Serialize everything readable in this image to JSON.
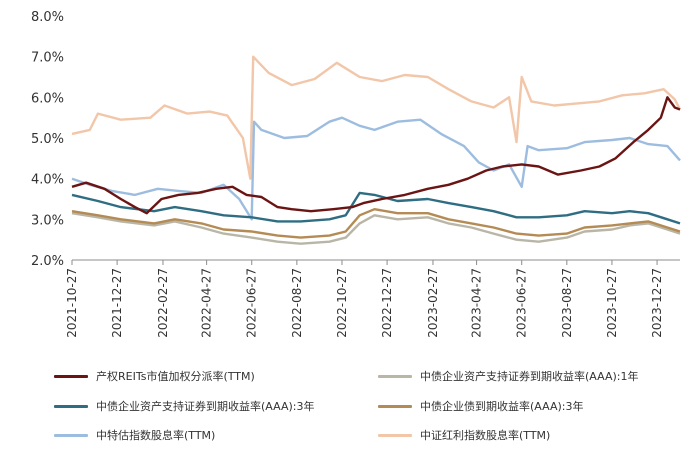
{
  "chart_data": {
    "type": "line",
    "title": "",
    "xlabel": "",
    "ylabel": "",
    "ylim": [
      2.0,
      8.0
    ],
    "xlim": [
      "2021-10-27",
      "2024-01-27"
    ],
    "y_ticks": [
      "2.0%",
      "3.0%",
      "4.0%",
      "5.0%",
      "6.0%",
      "7.0%",
      "8.0%"
    ],
    "x_ticks": [
      "2021-10-27",
      "2021-12-27",
      "2022-02-27",
      "2022-04-27",
      "2022-06-27",
      "2022-08-27",
      "2022-10-27",
      "2022-12-27",
      "2023-02-27",
      "2023-04-27",
      "2023-06-27",
      "2023-08-27",
      "2023-10-27",
      "2023-12-27"
    ],
    "grid": false,
    "legend_position": "bottom",
    "series": [
      {
        "name": "产权REITs市值加权分派率(TTM)",
        "color": "#6b1414",
        "points": [
          [
            "2021-10-27",
            3.8
          ],
          [
            "2021-11-15",
            3.9
          ],
          [
            "2021-12-10",
            3.75
          ],
          [
            "2022-01-01",
            3.5
          ],
          [
            "2022-01-20",
            3.3
          ],
          [
            "2022-02-05",
            3.15
          ],
          [
            "2022-02-25",
            3.5
          ],
          [
            "2022-03-20",
            3.6
          ],
          [
            "2022-04-15",
            3.65
          ],
          [
            "2022-05-10",
            3.75
          ],
          [
            "2022-06-01",
            3.8
          ],
          [
            "2022-06-20",
            3.6
          ],
          [
            "2022-07-10",
            3.55
          ],
          [
            "2022-08-01",
            3.3
          ],
          [
            "2022-08-20",
            3.25
          ],
          [
            "2022-09-15",
            3.2
          ],
          [
            "2022-10-15",
            3.25
          ],
          [
            "2022-11-10",
            3.3
          ],
          [
            "2022-11-25",
            3.4
          ],
          [
            "2022-12-20",
            3.5
          ],
          [
            "2023-01-20",
            3.6
          ],
          [
            "2023-02-20",
            3.75
          ],
          [
            "2023-03-20",
            3.85
          ],
          [
            "2023-04-15",
            4.0
          ],
          [
            "2023-05-10",
            4.2
          ],
          [
            "2023-06-01",
            4.3
          ],
          [
            "2023-06-27",
            4.35
          ],
          [
            "2023-07-20",
            4.3
          ],
          [
            "2023-08-15",
            4.1
          ],
          [
            "2023-09-15",
            4.2
          ],
          [
            "2023-10-10",
            4.3
          ],
          [
            "2023-11-01",
            4.5
          ],
          [
            "2023-11-25",
            4.9
          ],
          [
            "2023-12-15",
            5.2
          ],
          [
            "2024-01-01",
            5.5
          ],
          [
            "2024-01-10",
            6.0
          ],
          [
            "2024-01-20",
            5.75
          ],
          [
            "2024-01-27",
            5.7
          ]
        ]
      },
      {
        "name": "中债企业资产支持证券到期收益率(AAA):1年",
        "color": "#b9b6a7",
        "points": [
          [
            "2021-10-27",
            3.15
          ],
          [
            "2021-12-01",
            3.05
          ],
          [
            "2022-01-01",
            2.95
          ],
          [
            "2022-02-15",
            2.85
          ],
          [
            "2022-03-15",
            2.95
          ],
          [
            "2022-04-20",
            2.8
          ],
          [
            "2022-05-20",
            2.65
          ],
          [
            "2022-06-27",
            2.55
          ],
          [
            "2022-08-01",
            2.45
          ],
          [
            "2022-09-01",
            2.4
          ],
          [
            "2022-10-10",
            2.45
          ],
          [
            "2022-11-01",
            2.55
          ],
          [
            "2022-11-20",
            2.9
          ],
          [
            "2022-12-10",
            3.1
          ],
          [
            "2023-01-10",
            3.0
          ],
          [
            "2023-02-20",
            3.05
          ],
          [
            "2023-03-20",
            2.9
          ],
          [
            "2023-04-20",
            2.8
          ],
          [
            "2023-05-20",
            2.65
          ],
          [
            "2023-06-20",
            2.5
          ],
          [
            "2023-07-20",
            2.45
          ],
          [
            "2023-08-27",
            2.55
          ],
          [
            "2023-09-20",
            2.7
          ],
          [
            "2023-10-27",
            2.75
          ],
          [
            "2023-11-20",
            2.85
          ],
          [
            "2023-12-15",
            2.9
          ],
          [
            "2024-01-10",
            2.75
          ],
          [
            "2024-01-27",
            2.65
          ]
        ]
      },
      {
        "name": "中债企业资产支持证券到期收益率(AAA):3年",
        "color": "#2f6d82",
        "points": [
          [
            "2021-10-27",
            3.6
          ],
          [
            "2021-12-01",
            3.45
          ],
          [
            "2022-01-01",
            3.3
          ],
          [
            "2022-02-15",
            3.2
          ],
          [
            "2022-03-15",
            3.3
          ],
          [
            "2022-04-20",
            3.2
          ],
          [
            "2022-05-20",
            3.1
          ],
          [
            "2022-06-27",
            3.05
          ],
          [
            "2022-08-01",
            2.95
          ],
          [
            "2022-09-01",
            2.95
          ],
          [
            "2022-10-10",
            3.0
          ],
          [
            "2022-11-01",
            3.1
          ],
          [
            "2022-11-20",
            3.65
          ],
          [
            "2022-12-10",
            3.6
          ],
          [
            "2023-01-10",
            3.45
          ],
          [
            "2023-02-20",
            3.5
          ],
          [
            "2023-03-20",
            3.4
          ],
          [
            "2023-04-20",
            3.3
          ],
          [
            "2023-05-20",
            3.2
          ],
          [
            "2023-06-20",
            3.05
          ],
          [
            "2023-07-20",
            3.05
          ],
          [
            "2023-08-27",
            3.1
          ],
          [
            "2023-09-20",
            3.2
          ],
          [
            "2023-10-27",
            3.15
          ],
          [
            "2023-11-20",
            3.2
          ],
          [
            "2023-12-15",
            3.15
          ],
          [
            "2024-01-10",
            3.0
          ],
          [
            "2024-01-27",
            2.9
          ]
        ]
      },
      {
        "name": "中债企业债到期收益率(AAA):3年",
        "color": "#b48b54",
        "points": [
          [
            "2021-10-27",
            3.2
          ],
          [
            "2021-12-01",
            3.1
          ],
          [
            "2022-01-01",
            3.0
          ],
          [
            "2022-02-15",
            2.9
          ],
          [
            "2022-03-15",
            3.0
          ],
          [
            "2022-04-20",
            2.9
          ],
          [
            "2022-05-20",
            2.75
          ],
          [
            "2022-06-27",
            2.7
          ],
          [
            "2022-08-01",
            2.6
          ],
          [
            "2022-09-01",
            2.55
          ],
          [
            "2022-10-10",
            2.6
          ],
          [
            "2022-11-01",
            2.7
          ],
          [
            "2022-11-20",
            3.1
          ],
          [
            "2022-12-10",
            3.25
          ],
          [
            "2023-01-10",
            3.15
          ],
          [
            "2023-02-20",
            3.15
          ],
          [
            "2023-03-20",
            3.0
          ],
          [
            "2023-04-20",
            2.9
          ],
          [
            "2023-05-20",
            2.8
          ],
          [
            "2023-06-20",
            2.65
          ],
          [
            "2023-07-20",
            2.6
          ],
          [
            "2023-08-27",
            2.65
          ],
          [
            "2023-09-20",
            2.8
          ],
          [
            "2023-10-27",
            2.85
          ],
          [
            "2023-11-20",
            2.9
          ],
          [
            "2023-12-15",
            2.95
          ],
          [
            "2024-01-10",
            2.8
          ],
          [
            "2024-01-27",
            2.7
          ]
        ]
      },
      {
        "name": "中特估指数股息率(TTM)",
        "color": "#9dbde0",
        "points": [
          [
            "2021-10-27",
            4.0
          ],
          [
            "2021-11-20",
            3.85
          ],
          [
            "2021-12-20",
            3.7
          ],
          [
            "2022-01-20",
            3.6
          ],
          [
            "2022-02-20",
            3.75
          ],
          [
            "2022-03-20",
            3.7
          ],
          [
            "2022-04-20",
            3.65
          ],
          [
            "2022-05-20",
            3.85
          ],
          [
            "2022-06-10",
            3.5
          ],
          [
            "2022-06-27",
            3.0
          ],
          [
            "2022-06-30",
            5.4
          ],
          [
            "2022-07-10",
            5.2
          ],
          [
            "2022-08-10",
            5.0
          ],
          [
            "2022-09-10",
            5.05
          ],
          [
            "2022-10-10",
            5.4
          ],
          [
            "2022-10-27",
            5.5
          ],
          [
            "2022-11-20",
            5.3
          ],
          [
            "2022-12-10",
            5.2
          ],
          [
            "2023-01-10",
            5.4
          ],
          [
            "2023-02-10",
            5.45
          ],
          [
            "2023-03-10",
            5.1
          ],
          [
            "2023-04-10",
            4.8
          ],
          [
            "2023-04-30",
            4.4
          ],
          [
            "2023-05-20",
            4.2
          ],
          [
            "2023-06-10",
            4.35
          ],
          [
            "2023-06-27",
            3.8
          ],
          [
            "2023-07-05",
            4.8
          ],
          [
            "2023-07-20",
            4.7
          ],
          [
            "2023-08-27",
            4.75
          ],
          [
            "2023-09-20",
            4.9
          ],
          [
            "2023-10-27",
            4.95
          ],
          [
            "2023-11-20",
            5.0
          ],
          [
            "2023-12-15",
            4.85
          ],
          [
            "2024-01-10",
            4.8
          ],
          [
            "2024-01-27",
            4.45
          ]
        ]
      },
      {
        "name": "中证红利指数股息率(TTM)",
        "color": "#f2c6a8",
        "points": [
          [
            "2021-10-27",
            5.1
          ],
          [
            "2021-11-20",
            5.2
          ],
          [
            "2021-12-01",
            5.6
          ],
          [
            "2022-01-01",
            5.45
          ],
          [
            "2022-02-10",
            5.5
          ],
          [
            "2022-03-01",
            5.8
          ],
          [
            "2022-04-01",
            5.6
          ],
          [
            "2022-05-01",
            5.65
          ],
          [
            "2022-05-25",
            5.55
          ],
          [
            "2022-06-15",
            5.0
          ],
          [
            "2022-06-25",
            4.0
          ],
          [
            "2022-06-29",
            7.0
          ],
          [
            "2022-07-20",
            6.6
          ],
          [
            "2022-08-20",
            6.3
          ],
          [
            "2022-09-20",
            6.45
          ],
          [
            "2022-10-20",
            6.85
          ],
          [
            "2022-11-20",
            6.5
          ],
          [
            "2022-12-20",
            6.4
          ],
          [
            "2023-01-20",
            6.55
          ],
          [
            "2023-02-20",
            6.5
          ],
          [
            "2023-03-20",
            6.2
          ],
          [
            "2023-04-20",
            5.9
          ],
          [
            "2023-05-20",
            5.75
          ],
          [
            "2023-06-10",
            6.0
          ],
          [
            "2023-06-20",
            4.9
          ],
          [
            "2023-06-27",
            6.5
          ],
          [
            "2023-07-10",
            5.9
          ],
          [
            "2023-08-10",
            5.8
          ],
          [
            "2023-09-10",
            5.85
          ],
          [
            "2023-10-10",
            5.9
          ],
          [
            "2023-11-10",
            6.05
          ],
          [
            "2023-12-10",
            6.1
          ],
          [
            "2024-01-05",
            6.2
          ],
          [
            "2024-01-20",
            5.95
          ],
          [
            "2024-01-27",
            5.7
          ]
        ]
      }
    ]
  }
}
